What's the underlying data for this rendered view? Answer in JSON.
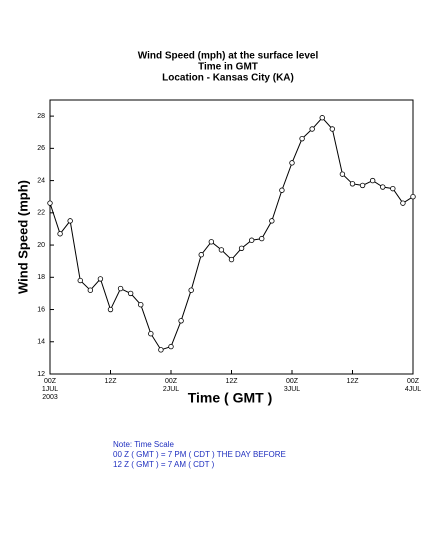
{
  "chart_data": {
    "type": "line",
    "title": [
      "Wind Speed (mph) at the surface level",
      "Time in GMT",
      "Location - Kansas City (KA)"
    ],
    "ylabel": "Wind Speed (mph)",
    "xlabel": "Time ( GMT )",
    "x": [
      0,
      2,
      4,
      6,
      8,
      10,
      12,
      14,
      16,
      18,
      20,
      22,
      24,
      26,
      28,
      30,
      32,
      34,
      36,
      38,
      40,
      42,
      44,
      46,
      48,
      50,
      52,
      54,
      56,
      58,
      60,
      62,
      64,
      66,
      68,
      70,
      72
    ],
    "series": [
      {
        "name": "Wind Speed",
        "color": "#000000",
        "values": [
          22.6,
          20.7,
          21.5,
          17.8,
          17.2,
          17.9,
          16.0,
          17.3,
          17.0,
          16.3,
          14.5,
          13.5,
          13.7,
          15.3,
          17.2,
          19.4,
          20.2,
          19.7,
          19.1,
          19.8,
          20.3,
          20.4,
          21.5,
          23.4,
          25.1,
          26.6,
          27.2,
          27.9,
          27.2,
          24.4,
          23.8,
          23.7,
          24.0,
          23.6,
          23.5,
          22.6,
          23.0
        ]
      }
    ],
    "xlim": [
      0,
      72
    ],
    "xticks": [
      {
        "value": 0,
        "label": "00Z"
      },
      {
        "value": 12,
        "label": "12Z"
      },
      {
        "value": 24,
        "label": "00Z"
      },
      {
        "value": 36,
        "label": "12Z"
      },
      {
        "value": 48,
        "label": "00Z"
      },
      {
        "value": 60,
        "label": "12Z"
      },
      {
        "value": 72,
        "label": "00Z"
      }
    ],
    "x_dates": [
      {
        "value": 0,
        "label": "1JUL"
      },
      {
        "value": 24,
        "label": "2JUL"
      },
      {
        "value": 48,
        "label": "3JUL"
      },
      {
        "value": 72,
        "label": "4JUL"
      }
    ],
    "year": {
      "value": 0,
      "label": "2003"
    },
    "ylim": [
      12,
      29
    ],
    "yticks": [
      12,
      14,
      16,
      18,
      20,
      22,
      24,
      26,
      28
    ],
    "notes": [
      "Note: Time Scale",
      "00 Z ( GMT ) = 7 PM ( CDT ) THE DAY BEFORE",
      "12 Z ( GMT ) = 7 AM ( CDT )"
    ]
  }
}
